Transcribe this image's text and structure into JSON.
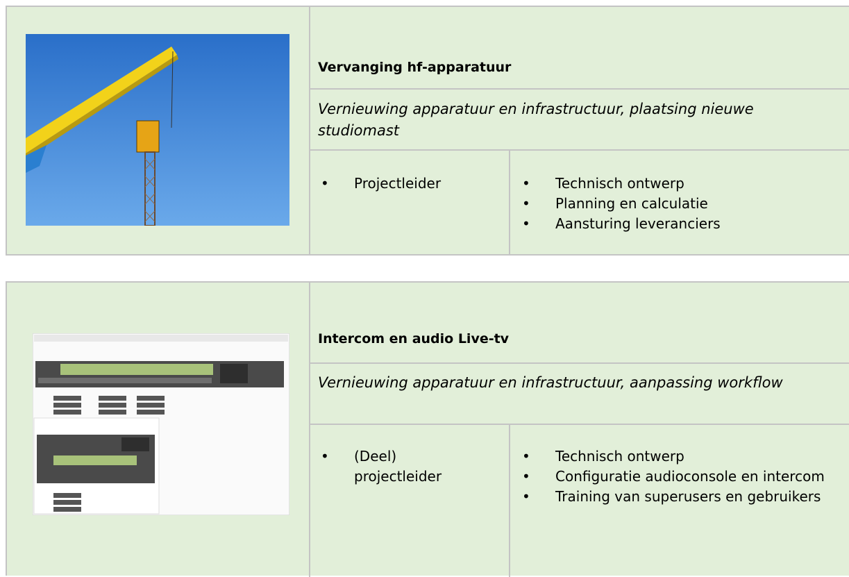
{
  "projects": [
    {
      "title": "Vervanging hf-apparatuur",
      "subtitle": "Vernieuwing apparatuur en infrastructuur, plaatsing nieuwe studiomast",
      "roles": [
        "Projectleider"
      ],
      "tasks": [
        "Technisch ontwerp",
        "Planning en calculatie",
        "Aansturing leveranciers"
      ]
    },
    {
      "title": "Intercom en audio Live-tv",
      "subtitle": "Vernieuwing apparatuur en infrastructuur, aanpassing workflow",
      "roles": [
        "(Deel) projectleider"
      ],
      "tasks": [
        "Technisch ontwerp",
        "Configuratie audioconsole en intercom",
        "Training van superusers en gebruikers"
      ]
    }
  ]
}
